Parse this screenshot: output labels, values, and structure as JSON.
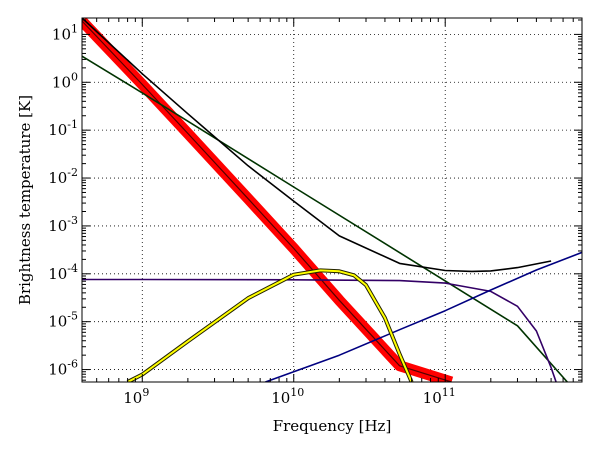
{
  "chart_data": {
    "type": "line",
    "title": "",
    "xlabel": "Frequency [Hz]",
    "ylabel": "Brightness temperature [K]",
    "xscale": "log",
    "yscale": "log",
    "xlim": [
      400000000.0,
      800000000000.0
    ],
    "ylim": [
      5.5e-07,
      22
    ],
    "grid": true,
    "legend": "none",
    "x_ticks": [
      {
        "value": 1000000000.0,
        "base": "10",
        "exp": "9"
      },
      {
        "value": 10000000000.0,
        "base": "10",
        "exp": "10"
      },
      {
        "value": 100000000000.0,
        "base": "10",
        "exp": "11"
      }
    ],
    "y_ticks": [
      {
        "value": 10,
        "base": "10",
        "exp": "1"
      },
      {
        "value": 1,
        "base": "10",
        "exp": "0"
      },
      {
        "value": 0.1,
        "base": "10",
        "exp": "-1"
      },
      {
        "value": 0.01,
        "base": "10",
        "exp": "-2"
      },
      {
        "value": 0.001,
        "base": "10",
        "exp": "-3"
      },
      {
        "value": 0.0001,
        "base": "10",
        "exp": "-4"
      },
      {
        "value": 1e-05,
        "base": "10",
        "exp": "-5"
      },
      {
        "value": 1e-06,
        "base": "10",
        "exp": "-6"
      }
    ],
    "series": [
      {
        "color": "#ff0000",
        "style": "band",
        "x": [
          400000000.0,
          1000000000.0,
          2000000000.0,
          5000000000.0,
          10000000000.0,
          20000000000.0,
          50000000000.0,
          110000000000.0
        ],
        "y": [
          19,
          0.9,
          0.085,
          0.0037,
          0.00034,
          2.8e-05,
          1.2e-06,
          5.5e-07
        ]
      },
      {
        "color": "#003300",
        "x": [
          400000000.0,
          1000000000.0,
          10000000000.0,
          100000000000.0,
          300000000000.0,
          640000000000.0
        ],
        "y": [
          3.5,
          0.6,
          0.0065,
          7.1e-05,
          8.2e-06,
          5.5e-07
        ]
      },
      {
        "color": "#330066",
        "x": [
          400000000.0,
          1000000000.0,
          10000000000.0,
          50000000000.0,
          100000000000.0,
          200000000000.0,
          300000000000.0,
          400000000000.0,
          500000000000.0,
          540000000000.0
        ],
        "y": [
          7.6e-05,
          7.6e-05,
          7.5e-05,
          7.2e-05,
          6.4e-05,
          4.3e-05,
          2.1e-05,
          6.4e-06,
          1.1e-06,
          5.5e-07
        ]
      },
      {
        "color": "#000080",
        "x": [
          6500000000.0,
          20000000000.0,
          50000000000.0,
          100000000000.0,
          200000000000.0,
          400000000000.0,
          800000000000.0
        ],
        "y": [
          5.5e-07,
          2e-06,
          6.8e-06,
          1.7e-05,
          4.6e-05,
          0.00012,
          0.00028
        ]
      },
      {
        "color": "#ffff00",
        "style": "outlined",
        "x": [
          800000000.0,
          1000000000.0,
          2000000000.0,
          5000000000.0,
          10000000000.0,
          15000000000.0,
          20000000000.0,
          25000000000.0,
          30000000000.0,
          40000000000.0,
          50000000000.0,
          60000000000.0
        ],
        "y": [
          5.5e-07,
          7.9e-07,
          3.9e-06,
          3.1e-05,
          9.6e-05,
          0.000118,
          0.000113,
          9.3e-05,
          5.8e-05,
          1.2e-05,
          2.1e-06,
          5.5e-07
        ]
      },
      {
        "color": "#000000",
        "x": [
          400000000.0,
          1000000000.0,
          2000000000.0,
          5000000000.0,
          10000000000.0,
          20000000000.0,
          50000000000.0,
          100000000000.0,
          150000000000.0,
          200000000000.0,
          300000000000.0,
          500000000000.0
        ],
        "y": [
          22,
          1.5,
          0.22,
          0.018,
          0.0033,
          0.00062,
          0.000165,
          0.000117,
          0.000112,
          0.000115,
          0.000135,
          0.000185
        ]
      }
    ]
  }
}
